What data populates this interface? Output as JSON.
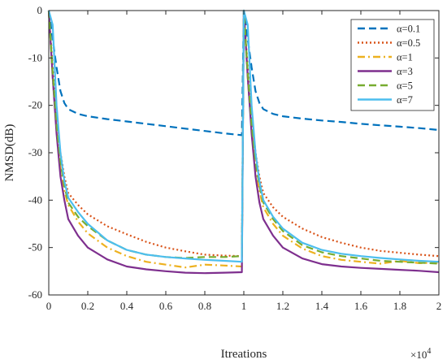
{
  "chart_data": {
    "type": "line",
    "xlabel": "Itreations",
    "ylabel": "NMSD(dB)",
    "x_multiplier_label": "×10^4",
    "x_multiplier": {
      "base": "×10",
      "exp": "4"
    },
    "xlim": [
      0,
      2
    ],
    "ylim": [
      -60,
      0
    ],
    "xticks": [
      "0",
      "0.2",
      "0.4",
      "0.6",
      "0.8",
      "1",
      "1.2",
      "1.4",
      "1.6",
      "1.8",
      "2"
    ],
    "yticks": [
      "0",
      "-10",
      "-20",
      "-30",
      "-40",
      "-50",
      "-60"
    ],
    "grid": false,
    "legend_position": "top-right",
    "x_units_note": "x values in units of 10^4 iterations",
    "series": [
      {
        "name": "α=0.1",
        "color": "#0072BD",
        "dash": "dashed",
        "points": [
          [
            0,
            0
          ],
          [
            0.02,
            -6
          ],
          [
            0.04,
            -12
          ],
          [
            0.06,
            -17
          ],
          [
            0.08,
            -19.5
          ],
          [
            0.1,
            -20.8
          ],
          [
            0.15,
            -21.8
          ],
          [
            0.2,
            -22.3
          ],
          [
            0.3,
            -22.9
          ],
          [
            0.4,
            -23.4
          ],
          [
            0.5,
            -23.9
          ],
          [
            0.6,
            -24.4
          ],
          [
            0.7,
            -24.9
          ],
          [
            0.8,
            -25.4
          ],
          [
            0.9,
            -25.9
          ],
          [
            0.99,
            -26.3
          ],
          [
            1.0,
            0
          ],
          [
            1.02,
            -6
          ],
          [
            1.04,
            -12
          ],
          [
            1.06,
            -17
          ],
          [
            1.08,
            -19.5
          ],
          [
            1.1,
            -20.8
          ],
          [
            1.15,
            -21.8
          ],
          [
            1.2,
            -22.3
          ],
          [
            1.3,
            -22.8
          ],
          [
            1.4,
            -23.2
          ],
          [
            1.5,
            -23.5
          ],
          [
            1.6,
            -23.9
          ],
          [
            1.7,
            -24.2
          ],
          [
            1.8,
            -24.5
          ],
          [
            1.9,
            -24.8
          ],
          [
            2.0,
            -25.2
          ]
        ]
      },
      {
        "name": "α=0.5",
        "color": "#D95319",
        "dash": "dotted",
        "points": [
          [
            0,
            0
          ],
          [
            0.02,
            -12
          ],
          [
            0.04,
            -22
          ],
          [
            0.06,
            -30
          ],
          [
            0.08,
            -35
          ],
          [
            0.1,
            -38.5
          ],
          [
            0.15,
            -41
          ],
          [
            0.2,
            -43
          ],
          [
            0.3,
            -45.5
          ],
          [
            0.4,
            -47.2
          ],
          [
            0.5,
            -48.8
          ],
          [
            0.6,
            -50
          ],
          [
            0.7,
            -50.8
          ],
          [
            0.8,
            -51.5
          ],
          [
            0.9,
            -51.7
          ],
          [
            0.99,
            -51.8
          ],
          [
            1.0,
            0
          ],
          [
            1.02,
            -12
          ],
          [
            1.04,
            -22
          ],
          [
            1.06,
            -30
          ],
          [
            1.08,
            -35
          ],
          [
            1.1,
            -38.5
          ],
          [
            1.15,
            -41.5
          ],
          [
            1.2,
            -43.5
          ],
          [
            1.3,
            -46
          ],
          [
            1.4,
            -47.8
          ],
          [
            1.5,
            -49
          ],
          [
            1.6,
            -50
          ],
          [
            1.7,
            -50.7
          ],
          [
            1.8,
            -51.1
          ],
          [
            1.9,
            -51.5
          ],
          [
            2.0,
            -51.8
          ]
        ]
      },
      {
        "name": "α=1",
        "color": "#EDB120",
        "dash": "dashdot",
        "points": [
          [
            0,
            0
          ],
          [
            0.02,
            -14
          ],
          [
            0.04,
            -25
          ],
          [
            0.06,
            -33
          ],
          [
            0.08,
            -38
          ],
          [
            0.1,
            -41
          ],
          [
            0.15,
            -44.5
          ],
          [
            0.2,
            -47
          ],
          [
            0.3,
            -50
          ],
          [
            0.4,
            -51.8
          ],
          [
            0.5,
            -53
          ],
          [
            0.6,
            -53.6
          ],
          [
            0.7,
            -54.2
          ],
          [
            0.8,
            -53.6
          ],
          [
            0.9,
            -53.8
          ],
          [
            0.99,
            -54
          ],
          [
            1.0,
            0
          ],
          [
            1.02,
            -14
          ],
          [
            1.04,
            -25
          ],
          [
            1.06,
            -33
          ],
          [
            1.08,
            -38
          ],
          [
            1.1,
            -41.5
          ],
          [
            1.15,
            -45
          ],
          [
            1.2,
            -47.5
          ],
          [
            1.3,
            -50.2
          ],
          [
            1.4,
            -51.8
          ],
          [
            1.5,
            -52.6
          ],
          [
            1.6,
            -53
          ],
          [
            1.7,
            -53.4
          ],
          [
            1.8,
            -52.8
          ],
          [
            1.9,
            -53.3
          ],
          [
            2.0,
            -53.2
          ]
        ]
      },
      {
        "name": "α=3",
        "color": "#7E2F8E",
        "dash": "solid",
        "points": [
          [
            0,
            0
          ],
          [
            0.02,
            -14
          ],
          [
            0.04,
            -26
          ],
          [
            0.06,
            -35
          ],
          [
            0.08,
            -40
          ],
          [
            0.1,
            -44
          ],
          [
            0.15,
            -47.5
          ],
          [
            0.2,
            -50
          ],
          [
            0.3,
            -52.5
          ],
          [
            0.4,
            -54
          ],
          [
            0.5,
            -54.6
          ],
          [
            0.6,
            -55
          ],
          [
            0.7,
            -55.3
          ],
          [
            0.8,
            -55.4
          ],
          [
            0.9,
            -55.3
          ],
          [
            0.99,
            -55.2
          ],
          [
            1.0,
            0
          ],
          [
            1.02,
            -14
          ],
          [
            1.04,
            -26
          ],
          [
            1.06,
            -35
          ],
          [
            1.08,
            -40.5
          ],
          [
            1.1,
            -44
          ],
          [
            1.15,
            -47.5
          ],
          [
            1.2,
            -50
          ],
          [
            1.3,
            -52.3
          ],
          [
            1.4,
            -53.5
          ],
          [
            1.5,
            -54
          ],
          [
            1.6,
            -54.3
          ],
          [
            1.7,
            -54.5
          ],
          [
            1.8,
            -54.7
          ],
          [
            1.9,
            -54.9
          ],
          [
            2.0,
            -55.2
          ]
        ]
      },
      {
        "name": "α=5",
        "color": "#77AC30",
        "dash": "dashed",
        "points": [
          [
            0,
            0
          ],
          [
            0.02,
            -13
          ],
          [
            0.04,
            -24
          ],
          [
            0.06,
            -32
          ],
          [
            0.08,
            -37
          ],
          [
            0.1,
            -40.5
          ],
          [
            0.15,
            -43.5
          ],
          [
            0.2,
            -45.5
          ],
          [
            0.3,
            -48.5
          ],
          [
            0.4,
            -50.5
          ],
          [
            0.5,
            -51.5
          ],
          [
            0.6,
            -52
          ],
          [
            0.7,
            -52.2
          ],
          [
            0.8,
            -52
          ],
          [
            0.9,
            -52
          ],
          [
            0.99,
            -51.8
          ],
          [
            1.0,
            0
          ],
          [
            1.02,
            -13
          ],
          [
            1.04,
            -24
          ],
          [
            1.06,
            -32
          ],
          [
            1.08,
            -37
          ],
          [
            1.1,
            -40.5
          ],
          [
            1.15,
            -44
          ],
          [
            1.2,
            -46.5
          ],
          [
            1.3,
            -49.5
          ],
          [
            1.4,
            -51
          ],
          [
            1.5,
            -51.8
          ],
          [
            1.6,
            -52.3
          ],
          [
            1.7,
            -52.8
          ],
          [
            1.8,
            -53
          ],
          [
            1.9,
            -53.2
          ],
          [
            2.0,
            -53.4
          ]
        ]
      },
      {
        "name": "α=7",
        "color": "#4DBEEE",
        "dash": "solid",
        "points": [
          [
            0,
            0
          ],
          [
            0.02,
            -3
          ],
          [
            0.04,
            -20
          ],
          [
            0.06,
            -30
          ],
          [
            0.08,
            -36
          ],
          [
            0.1,
            -39.5
          ],
          [
            0.15,
            -42.5
          ],
          [
            0.2,
            -45
          ],
          [
            0.3,
            -48.5
          ],
          [
            0.4,
            -50.5
          ],
          [
            0.5,
            -51.5
          ],
          [
            0.6,
            -52
          ],
          [
            0.7,
            -52.3
          ],
          [
            0.8,
            -52.6
          ],
          [
            0.9,
            -52.8
          ],
          [
            0.99,
            -53
          ],
          [
            1.0,
            0
          ],
          [
            1.02,
            -3
          ],
          [
            1.04,
            -20
          ],
          [
            1.06,
            -30
          ],
          [
            1.08,
            -36
          ],
          [
            1.1,
            -40
          ],
          [
            1.15,
            -43.5
          ],
          [
            1.2,
            -46
          ],
          [
            1.3,
            -49
          ],
          [
            1.4,
            -50.5
          ],
          [
            1.5,
            -51.3
          ],
          [
            1.6,
            -51.8
          ],
          [
            1.7,
            -52.2
          ],
          [
            1.8,
            -52.5
          ],
          [
            1.9,
            -52.8
          ],
          [
            2.0,
            -53
          ]
        ]
      }
    ]
  }
}
